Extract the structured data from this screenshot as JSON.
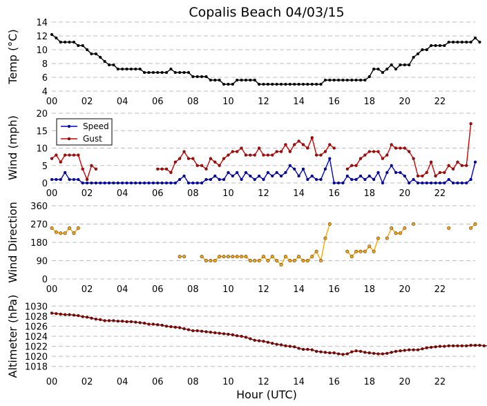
{
  "title": "Copalis Beach 04/03/15",
  "xlabel": "Hour (UTC)",
  "x_ticks": [
    "00",
    "02",
    "04",
    "06",
    "08",
    "10",
    "12",
    "14",
    "16",
    "18",
    "20",
    "22"
  ],
  "colors": {
    "temp": "#000000",
    "speed": "#0000cc",
    "gust": "#cc0000",
    "direction": "#ffa500",
    "altimeter": "#990000",
    "grid": "#bbbbbb"
  },
  "chart_data": [
    {
      "type": "line",
      "panel": "temperature",
      "ylabel": "Temp ($^\\circ$C)",
      "ylabel_display": "Temp (°C)",
      "ylim": [
        4,
        14
      ],
      "yticks": [
        4,
        6,
        8,
        10,
        12,
        14
      ],
      "grid": true,
      "series": [
        {
          "x_start_hour": 0.0,
          "step_minutes": 15,
          "values": [
            12.2,
            11.7,
            11.1,
            11.1,
            11.1,
            11.1,
            10.6,
            10.6,
            10.0,
            9.4,
            9.4,
            8.9,
            8.3,
            7.8,
            7.8,
            7.2,
            7.2,
            7.2,
            7.2,
            7.2,
            7.2,
            6.7,
            6.7,
            6.7,
            6.7,
            6.7,
            6.7,
            7.2,
            6.7,
            6.7,
            6.7,
            6.7,
            6.1,
            6.1,
            6.1,
            6.1,
            5.6,
            5.6,
            5.6,
            5.0,
            5.0,
            5.0,
            5.6,
            5.6,
            5.6,
            5.6,
            5.6,
            5.0,
            5.0,
            5.0,
            5.0,
            5.0,
            5.0,
            5.0,
            5.0,
            5.0,
            5.0,
            5.0,
            5.0,
            5.0,
            5.0,
            5.0,
            5.6,
            5.6,
            5.6,
            5.6,
            5.6,
            5.6,
            5.6,
            5.6,
            5.6,
            5.6,
            6.1,
            7.2,
            7.2,
            6.7,
            7.2,
            7.8,
            7.2,
            7.8,
            7.8,
            7.8,
            8.9,
            9.4,
            10.0,
            10.0,
            10.6,
            10.6,
            10.6,
            10.6,
            11.1,
            11.1,
            11.1,
            11.1,
            11.1,
            11.1,
            11.7,
            11.1
          ]
        }
      ]
    },
    {
      "type": "line",
      "panel": "wind",
      "ylabel": "Wind (mph)",
      "ylim": [
        0,
        20
      ],
      "yticks": [
        0,
        5,
        10,
        15,
        20
      ],
      "grid": true,
      "legend_position": "upper-left",
      "series": [
        {
          "name": "Speed",
          "x_start_hour": 0.0,
          "step_minutes": 15,
          "values": [
            1,
            1,
            1,
            3,
            1,
            1,
            1,
            0,
            0,
            0,
            0,
            0,
            0,
            0,
            0,
            0,
            0,
            0,
            0,
            0,
            0,
            0,
            0,
            0,
            0,
            0,
            0,
            0,
            0,
            1,
            2,
            0,
            0,
            0,
            0,
            1,
            1,
            2,
            1,
            1,
            3,
            2,
            3,
            1,
            3,
            2,
            1,
            2,
            1,
            3,
            2,
            3,
            2,
            3,
            5,
            4,
            2,
            4,
            1,
            2,
            1,
            1,
            4,
            7,
            0,
            0,
            0,
            2,
            1,
            1,
            2,
            1,
            2,
            1,
            3,
            0,
            3,
            5,
            3,
            3,
            2,
            0,
            1,
            0,
            0,
            0,
            0,
            0,
            0,
            0,
            1,
            0,
            0,
            0,
            0,
            1,
            6
          ]
        },
        {
          "name": "Gust",
          "x_start_hour": 0.0,
          "step_minutes": 15,
          "values": [
            7,
            8,
            6,
            8,
            8,
            8,
            8,
            4,
            1,
            5,
            4,
            null,
            null,
            null,
            null,
            null,
            null,
            null,
            null,
            null,
            null,
            null,
            null,
            null,
            4,
            4,
            4,
            3,
            6,
            7,
            9,
            7,
            7,
            5,
            5,
            4,
            7,
            6,
            5,
            7,
            8,
            9,
            9,
            10,
            8,
            8,
            8,
            10,
            8,
            8,
            8,
            9,
            9,
            11,
            9,
            11,
            12,
            11,
            10,
            13,
            8,
            8,
            9,
            11,
            10,
            null,
            null,
            4,
            5,
            5,
            7,
            8,
            9,
            9,
            9,
            7,
            8,
            11,
            10,
            10,
            10,
            9,
            7,
            2,
            2,
            3,
            6,
            2,
            3,
            3,
            5,
            4,
            6,
            5,
            5,
            17
          ]
        }
      ]
    },
    {
      "type": "scatter",
      "panel": "direction",
      "ylabel": "Wind Direction",
      "ylim": [
        0,
        360
      ],
      "yticks": [
        0,
        90,
        180,
        270,
        360
      ],
      "grid": true,
      "series": [
        {
          "x_start_hour": 0.0,
          "step_minutes": 15,
          "values": [
            250,
            230,
            225,
            225,
            250,
            225,
            250,
            null,
            null,
            null,
            null,
            null,
            null,
            null,
            null,
            null,
            null,
            null,
            null,
            null,
            null,
            null,
            null,
            null,
            null,
            null,
            null,
            null,
            null,
            110,
            110,
            null,
            null,
            null,
            110,
            90,
            90,
            90,
            110,
            110,
            110,
            110,
            110,
            110,
            110,
            90,
            90,
            90,
            110,
            90,
            110,
            90,
            70,
            110,
            90,
            90,
            110,
            90,
            90,
            110,
            135,
            90,
            200,
            270,
            null,
            null,
            null,
            135,
            110,
            135,
            135,
            135,
            160,
            135,
            200,
            null,
            200,
            250,
            225,
            225,
            250,
            null,
            270,
            null,
            null,
            null,
            null,
            null,
            null,
            null,
            250,
            null,
            null,
            null,
            null,
            250,
            270
          ]
        }
      ]
    },
    {
      "type": "line",
      "panel": "altimeter",
      "ylabel": "Altimeter (hPa)",
      "ylim": [
        1017,
        1031
      ],
      "yticks": [
        1018,
        1020,
        1022,
        1024,
        1026,
        1028,
        1030
      ],
      "grid": true,
      "series": [
        {
          "x_start_hour": 0.0,
          "step_minutes": 15,
          "values": [
            1028.6,
            1028.5,
            1028.4,
            1028.3,
            1028.3,
            1028.2,
            1028.1,
            1027.9,
            1027.8,
            1027.6,
            1027.4,
            1027.3,
            1027.1,
            1027.1,
            1027.1,
            1027.0,
            1027.0,
            1026.9,
            1026.9,
            1026.8,
            1026.7,
            1026.6,
            1026.4,
            1026.4,
            1026.3,
            1026.2,
            1026.0,
            1025.9,
            1025.8,
            1025.7,
            1025.5,
            1025.3,
            1025.1,
            1025.1,
            1025.0,
            1024.9,
            1024.8,
            1024.7,
            1024.6,
            1024.5,
            1024.4,
            1024.3,
            1024.1,
            1024.0,
            1023.8,
            1023.5,
            1023.2,
            1023.1,
            1023.0,
            1022.8,
            1022.6,
            1022.4,
            1022.3,
            1022.1,
            1022.0,
            1021.9,
            1021.6,
            1021.4,
            1021.4,
            1021.3,
            1021.0,
            1020.9,
            1020.8,
            1020.7,
            1020.7,
            1020.5,
            1020.4,
            1020.5,
            1020.9,
            1021.1,
            1021.0,
            1020.8,
            1020.7,
            1020.6,
            1020.5,
            1020.5,
            1020.6,
            1020.8,
            1021.0,
            1021.1,
            1021.2,
            1021.3,
            1021.3,
            1021.3,
            1021.5,
            1021.7,
            1021.8,
            1021.9,
            1022.0,
            1022.0,
            1022.1,
            1022.1,
            1022.1,
            1022.1,
            1022.1,
            1022.2,
            1022.2,
            1022.2,
            1022.1,
            1022.1,
            1022.1,
            1022.1,
            1022.1,
            1022.1,
            1022.1,
            1022.1,
            1022.3
          ]
        }
      ]
    }
  ]
}
